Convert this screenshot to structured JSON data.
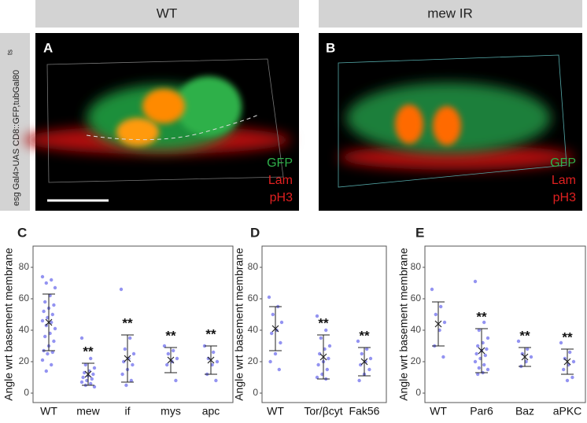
{
  "header": {
    "left": "WT",
    "right": "mew IR"
  },
  "side_label": {
    "text": "esg Gal4>UAS CD8::GFP,tubGal80",
    "superscript": "ts"
  },
  "images": [
    {
      "label": "A",
      "channels": [
        "GFP",
        "Lam",
        "pH3"
      ]
    },
    {
      "label": "B",
      "channels": [
        "GFP",
        "Lam",
        "pH3"
      ]
    }
  ],
  "chart_data": [
    {
      "type": "strip",
      "panel": "C",
      "ylabel": "Angle wrt basement membrane",
      "color": "#8080ee",
      "categories": [
        "WT",
        "mew",
        "if",
        "mys",
        "apc"
      ],
      "values": [
        45,
        12,
        22,
        21,
        21
      ],
      "errors": [
        18,
        7,
        15,
        8,
        9
      ],
      "annotations": [
        null,
        "**",
        "**",
        "**",
        "**"
      ],
      "points": [
        [
          74,
          72,
          70,
          67,
          62,
          58,
          56,
          54,
          52,
          50,
          48,
          46,
          45,
          43,
          41,
          38,
          36,
          33,
          30,
          27,
          26,
          25,
          21,
          18,
          14
        ],
        [
          35,
          22,
          18,
          16,
          14,
          13,
          12,
          11,
          10,
          9,
          8,
          7,
          6,
          5,
          4
        ],
        [
          66,
          35,
          28,
          25,
          22,
          20,
          18,
          15,
          12,
          8,
          5
        ],
        [
          30,
          27,
          25,
          22,
          20,
          18,
          8
        ],
        [
          30,
          26,
          22,
          20,
          18,
          12,
          8
        ]
      ],
      "ylim": [
        -6,
        93.5
      ],
      "yticks": [
        0,
        20,
        40,
        60,
        80
      ]
    },
    {
      "type": "strip",
      "panel": "D",
      "ylabel": "Angle wrt basement membrane",
      "color": "#8080ee",
      "categories": [
        "WT",
        "Tor/βcyt",
        "Fak56"
      ],
      "values": [
        41,
        23,
        20
      ],
      "errors": [
        14,
        14,
        9
      ],
      "annotations": [
        null,
        "**",
        "**"
      ],
      "points": [
        [
          61,
          55,
          50,
          45,
          40,
          38,
          32,
          25,
          20,
          15
        ],
        [
          49,
          40,
          35,
          30,
          28,
          25,
          22,
          20,
          18,
          15,
          12,
          10,
          9
        ],
        [
          33,
          28,
          25,
          22,
          20,
          18,
          15,
          12,
          8
        ]
      ],
      "ylim": [
        -6,
        93.5
      ],
      "yticks": [
        0,
        20,
        40,
        60,
        80
      ]
    },
    {
      "type": "strip",
      "panel": "E",
      "ylabel": "Angle wrt basement membrane",
      "color": "#8080ee",
      "categories": [
        "WT",
        "Par6",
        "Baz",
        "aPKC"
      ],
      "values": [
        44,
        27,
        23,
        20
      ],
      "errors": [
        14,
        14,
        6,
        8
      ],
      "annotations": [
        null,
        "**",
        "**",
        "**"
      ],
      "points": [
        [
          66,
          55,
          50,
          45,
          40,
          30,
          23
        ],
        [
          71,
          45,
          40,
          35,
          32,
          30,
          28,
          27,
          25,
          24,
          22,
          20,
          18,
          16,
          15,
          13,
          12
        ],
        [
          33,
          28,
          25,
          23,
          20,
          17
        ],
        [
          32,
          26,
          22,
          20,
          18,
          15,
          10,
          8
        ]
      ],
      "ylim": [
        -6,
        93.5
      ],
      "yticks": [
        0,
        20,
        40,
        60,
        80
      ]
    }
  ]
}
